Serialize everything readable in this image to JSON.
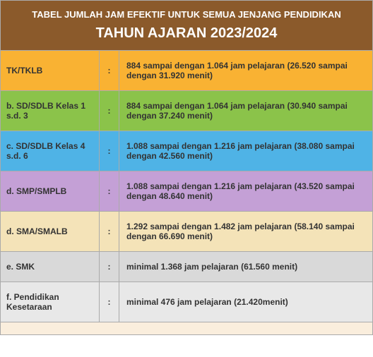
{
  "header": {
    "subtitle": "TABEL JUMLAH JAM EFEKTIF UNTUK SEMUA JENJANG PENDIDIKAN",
    "title": "TAHUN AJARAN 2023/2024",
    "bg": "#8b5a2b",
    "fg": "#ffffff"
  },
  "rows": [
    {
      "label": "TK/TKLB",
      "value": "884 sampai dengan 1.064 jam pelajaran (26.520 sampai dengan 31.920 menit)",
      "bg": "#f9b233"
    },
    {
      "label": "b. SD/SDLB Kelas 1 s.d. 3",
      "value": "884 sampai dengan 1.064 jam pelajaran (30.940 sampai dengan 37.240 menit)",
      "bg": "#8bc34a"
    },
    {
      "label": "c. SD/SDLB Kelas 4 s.d. 6",
      "value": "1.088 sampai dengan 1.216 jam pelajaran (38.080 sampai dengan 42.560 menit)",
      "bg": "#4fb3e6"
    },
    {
      "label": "d. SMP/SMPLB",
      "value": "1.088 sampai dengan 1.216 jam pelajaran (43.520 sampai dengan 48.640 menit)",
      "bg": "#c4a0d6"
    },
    {
      "label": "d. SMA/SMALB",
      "value": "1.292 sampai dengan 1.482 jam pelajaran (58.140 sampai dengan 66.690 menit)",
      "bg": "#f4e3b8"
    },
    {
      "label": "e. SMK",
      "value": "minimal 1.368 jam pelajaran (61.560 menit)",
      "bg": "#d9d9d9"
    },
    {
      "label": "f. Pendidikan Kesetaraan",
      "value": "minimal 476 jam pelajaran (21.420menit)",
      "bg": "#e8e8e8"
    }
  ],
  "footer_bg": "#faeedd",
  "colon": ":"
}
